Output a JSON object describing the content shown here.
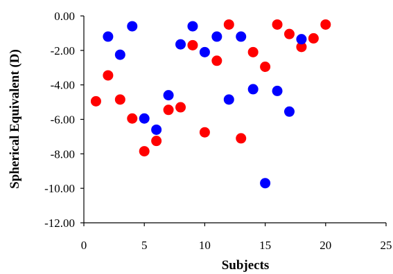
{
  "chart_data": {
    "type": "scatter",
    "title": "",
    "xlabel": "Subjects",
    "ylabel": "Spherical Equivalent (D)",
    "xlim": [
      0,
      25
    ],
    "ylim": [
      -12,
      0
    ],
    "x_ticks": [
      0,
      5,
      10,
      15,
      20,
      25
    ],
    "y_ticks": [
      0,
      -2,
      -4,
      -6,
      -8,
      -10,
      -12
    ],
    "x_tick_labels": [
      "0",
      "5",
      "10",
      "15",
      "20",
      "25"
    ],
    "y_tick_labels": [
      "0.00",
      "-2.00",
      "-4.00",
      "-6.00",
      "-8.00",
      "-10.00",
      "-12.00"
    ],
    "grid": false,
    "legend": "none",
    "series": [
      {
        "color": "#ff0000",
        "points": [
          {
            "x": 1,
            "y": -4.95
          },
          {
            "x": 2,
            "y": -3.45
          },
          {
            "x": 3,
            "y": -4.85
          },
          {
            "x": 4,
            "y": -5.95
          },
          {
            "x": 5,
            "y": -7.85
          },
          {
            "x": 6,
            "y": -7.25
          },
          {
            "x": 7,
            "y": -5.45
          },
          {
            "x": 8,
            "y": -5.3
          },
          {
            "x": 9,
            "y": -1.7
          },
          {
            "x": 10,
            "y": -6.75
          },
          {
            "x": 11,
            "y": -2.6
          },
          {
            "x": 12,
            "y": -0.5
          },
          {
            "x": 13,
            "y": -7.1
          },
          {
            "x": 14,
            "y": -2.1
          },
          {
            "x": 15,
            "y": -2.95
          },
          {
            "x": 16,
            "y": -0.5
          },
          {
            "x": 17,
            "y": -1.05
          },
          {
            "x": 18,
            "y": -1.8
          },
          {
            "x": 19,
            "y": -1.3
          },
          {
            "x": 20,
            "y": -0.5
          }
        ]
      },
      {
        "color": "#0000ff",
        "points": [
          {
            "x": 2,
            "y": -1.2
          },
          {
            "x": 3,
            "y": -2.25
          },
          {
            "x": 4,
            "y": -0.6
          },
          {
            "x": 5,
            "y": -5.95
          },
          {
            "x": 6,
            "y": -6.6
          },
          {
            "x": 7,
            "y": -4.6
          },
          {
            "x": 8,
            "y": -1.65
          },
          {
            "x": 9,
            "y": -0.6
          },
          {
            "x": 10,
            "y": -2.1
          },
          {
            "x": 11,
            "y": -1.2
          },
          {
            "x": 12,
            "y": -4.85
          },
          {
            "x": 13,
            "y": -1.2
          },
          {
            "x": 14,
            "y": -4.25
          },
          {
            "x": 15,
            "y": -9.7
          },
          {
            "x": 16,
            "y": -4.35
          },
          {
            "x": 17,
            "y": -5.55
          },
          {
            "x": 18,
            "y": -1.35
          }
        ]
      }
    ]
  }
}
